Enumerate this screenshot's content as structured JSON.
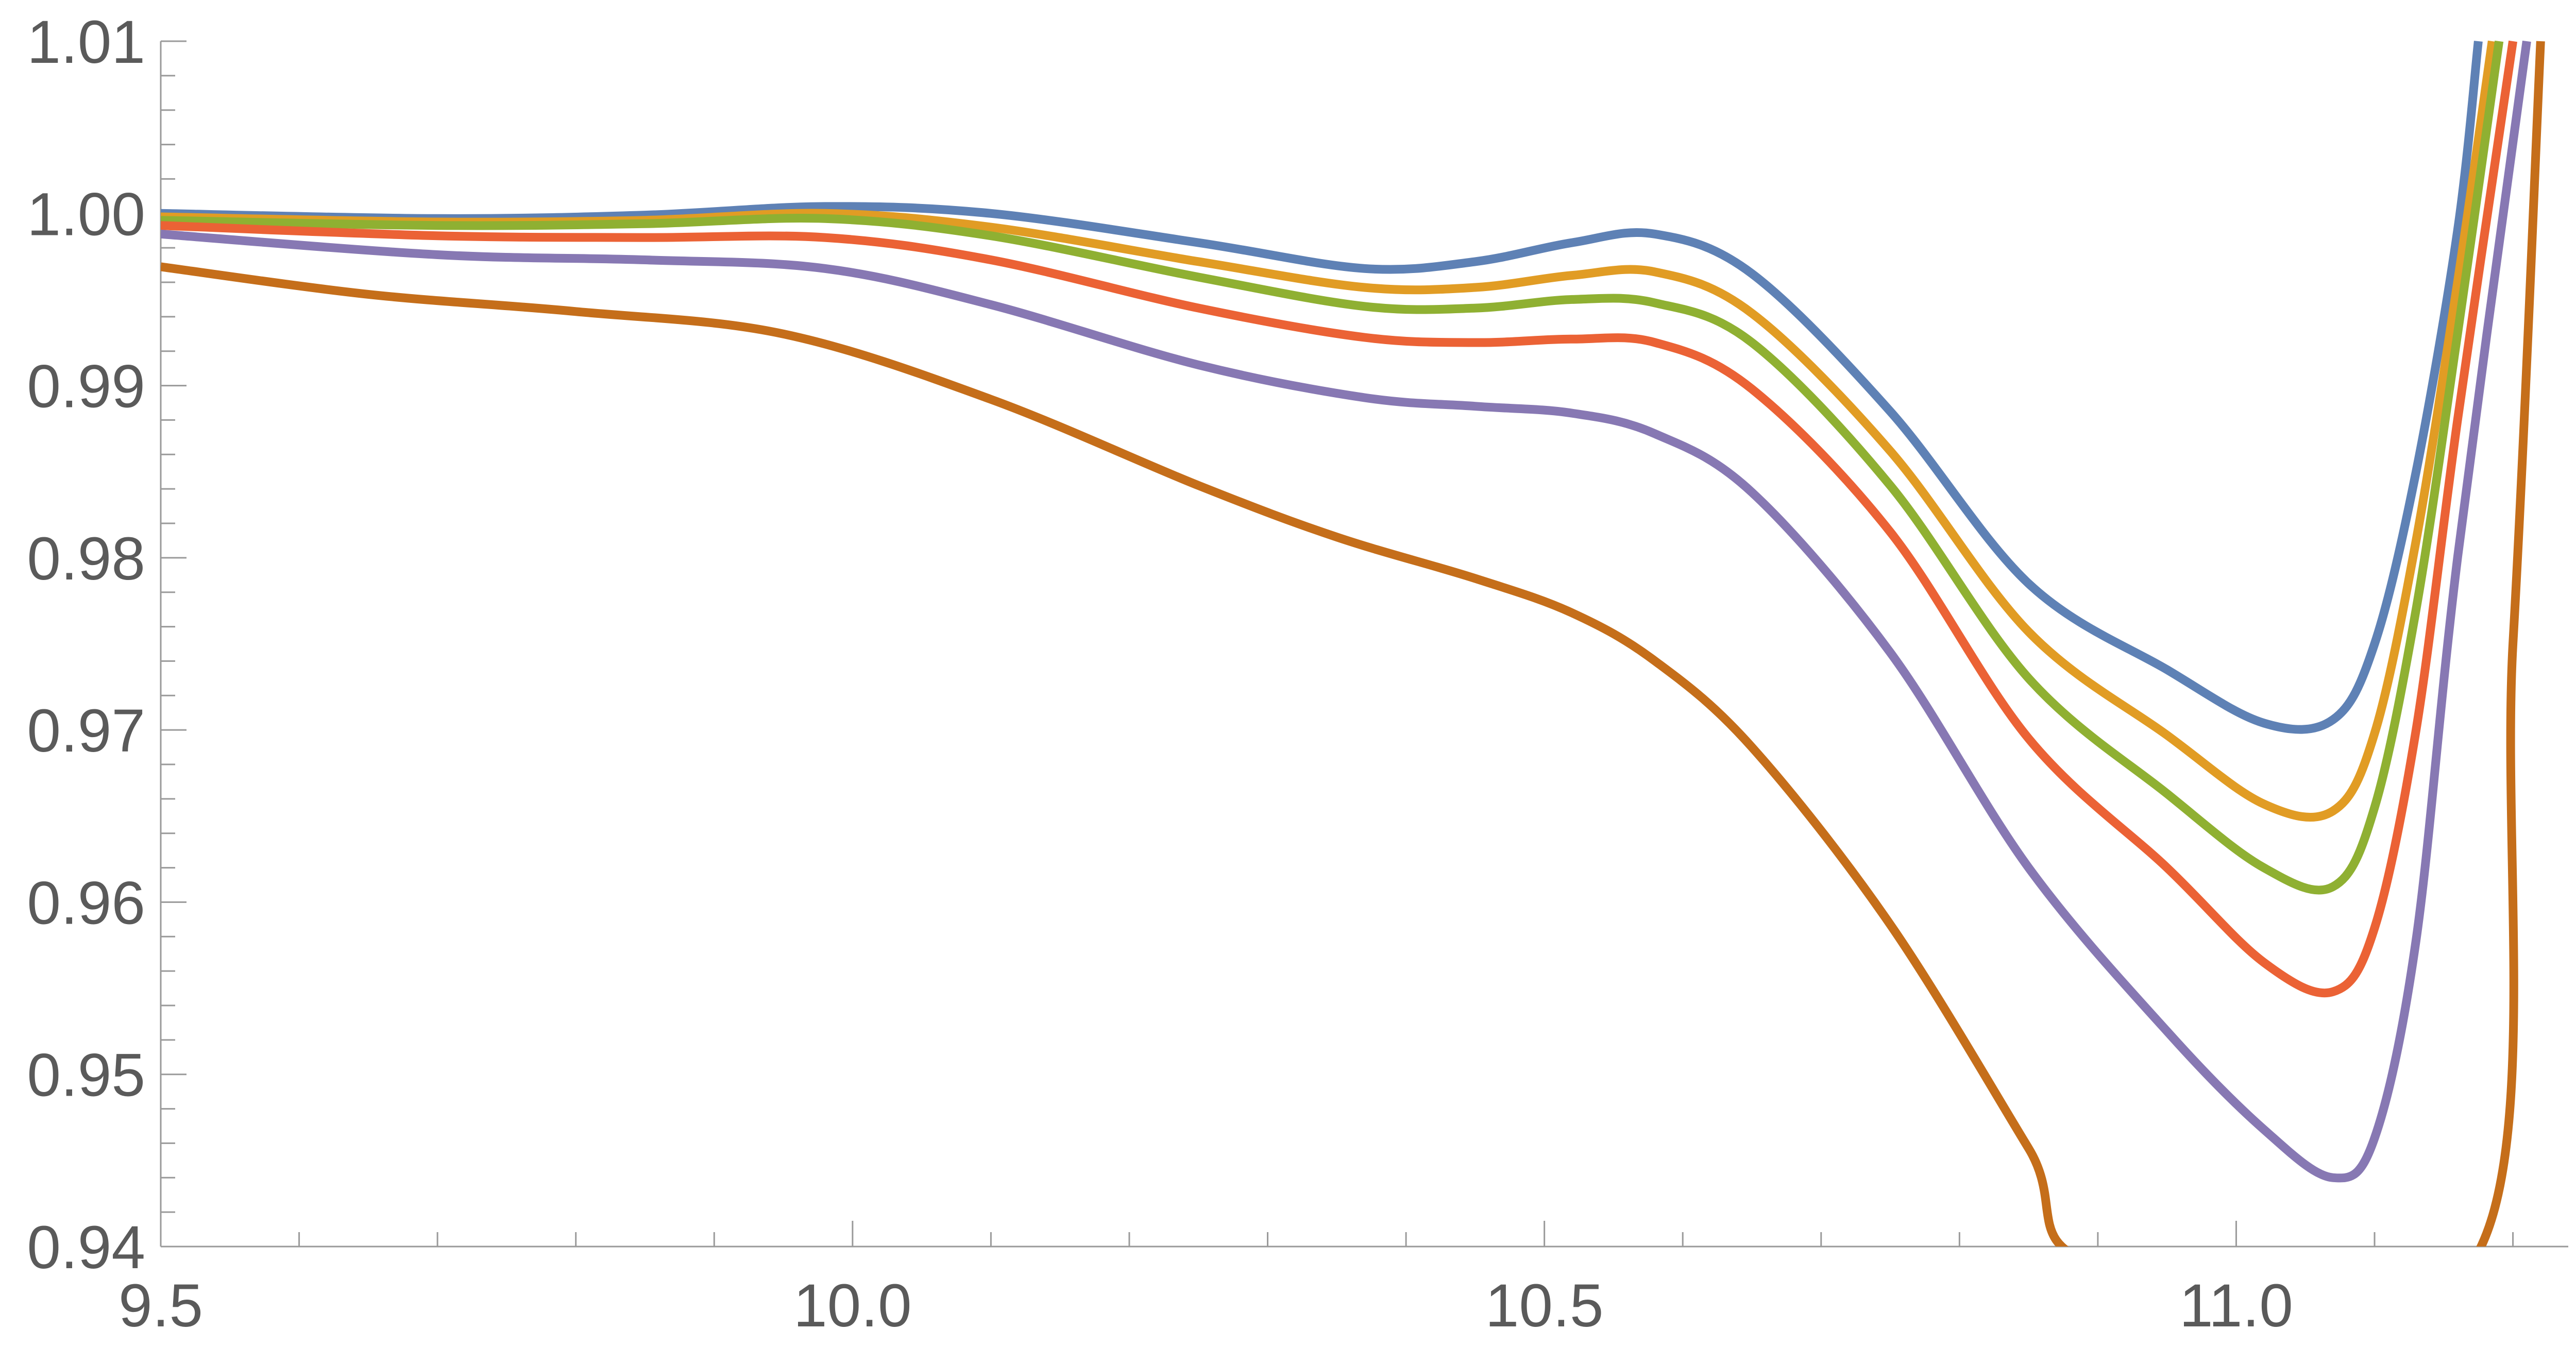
{
  "chart_data": {
    "type": "line",
    "title": "",
    "xlabel": "",
    "ylabel": "",
    "xlim": [
      9.5,
      11.24
    ],
    "ylim": [
      0.94,
      1.01
    ],
    "grid": false,
    "legend": "none",
    "x_ticks": [
      {
        "value": 9.5,
        "label": "9.5"
      },
      {
        "value": 10.0,
        "label": "10.0"
      },
      {
        "value": 10.5,
        "label": "10.5"
      },
      {
        "value": 11.0,
        "label": "11.0"
      }
    ],
    "y_ticks": [
      {
        "value": 0.94,
        "label": "0.94"
      },
      {
        "value": 0.95,
        "label": "0.95"
      },
      {
        "value": 0.96,
        "label": "0.96"
      },
      {
        "value": 0.97,
        "label": "0.97"
      },
      {
        "value": 0.98,
        "label": "0.98"
      },
      {
        "value": 0.99,
        "label": "0.99"
      },
      {
        "value": 1.0,
        "label": "1.00"
      },
      {
        "value": 1.01,
        "label": "1.01"
      }
    ],
    "x_minor_step": 0.1,
    "y_minor_step": 0.002,
    "series": [
      {
        "color": "#5E81B5",
        "points": [
          [
            9.5,
            1.0
          ],
          [
            9.7,
            0.9997
          ],
          [
            9.85,
            0.9999
          ],
          [
            9.98,
            1.0004
          ],
          [
            10.1,
            1.0
          ],
          [
            10.25,
            0.9983
          ],
          [
            10.37,
            0.9968
          ],
          [
            10.45,
            0.9972
          ],
          [
            10.52,
            0.9983
          ],
          [
            10.58,
            0.9988
          ],
          [
            10.65,
            0.9965
          ],
          [
            10.75,
            0.9885
          ],
          [
            10.85,
            0.9785
          ],
          [
            10.95,
            0.9735
          ],
          [
            11.02,
            0.9704
          ],
          [
            11.07,
            0.9706
          ],
          [
            11.1,
            0.975
          ],
          [
            11.13,
            0.985
          ],
          [
            11.16,
            0.999
          ],
          [
            11.175,
            1.01
          ]
        ]
      },
      {
        "color": "#E19C24",
        "points": [
          [
            9.5,
            0.9998
          ],
          [
            9.7,
            0.9995
          ],
          [
            9.85,
            0.9996
          ],
          [
            9.98,
            1.0
          ],
          [
            10.1,
            0.9992
          ],
          [
            10.25,
            0.9972
          ],
          [
            10.37,
            0.9957
          ],
          [
            10.45,
            0.9957
          ],
          [
            10.52,
            0.9964
          ],
          [
            10.58,
            0.9966
          ],
          [
            10.65,
            0.9942
          ],
          [
            10.75,
            0.9862
          ],
          [
            10.85,
            0.9757
          ],
          [
            10.95,
            0.9697
          ],
          [
            11.02,
            0.9657
          ],
          [
            11.07,
            0.9653
          ],
          [
            11.1,
            0.9698
          ],
          [
            11.13,
            0.981
          ],
          [
            11.16,
            0.996
          ],
          [
            11.185,
            1.01
          ]
        ]
      },
      {
        "color": "#8FB032",
        "points": [
          [
            9.5,
            0.9996
          ],
          [
            9.7,
            0.9993
          ],
          [
            9.85,
            0.9994
          ],
          [
            9.98,
            0.9997
          ],
          [
            10.1,
            0.9987
          ],
          [
            10.25,
            0.9963
          ],
          [
            10.37,
            0.9946
          ],
          [
            10.45,
            0.9945
          ],
          [
            10.52,
            0.995
          ],
          [
            10.58,
            0.9948
          ],
          [
            10.65,
            0.9925
          ],
          [
            10.75,
            0.9842
          ],
          [
            10.85,
            0.973
          ],
          [
            10.95,
            0.9663
          ],
          [
            11.02,
            0.962
          ],
          [
            11.07,
            0.9609
          ],
          [
            11.1,
            0.9655
          ],
          [
            11.13,
            0.977
          ],
          [
            11.16,
            0.993
          ],
          [
            11.19,
            1.01
          ]
        ]
      },
      {
        "color": "#EB6235",
        "points": [
          [
            9.5,
            0.9993
          ],
          [
            9.7,
            0.9987
          ],
          [
            9.85,
            0.9986
          ],
          [
            9.98,
            0.9986
          ],
          [
            10.1,
            0.9973
          ],
          [
            10.25,
            0.9945
          ],
          [
            10.37,
            0.9928
          ],
          [
            10.45,
            0.9925
          ],
          [
            10.52,
            0.9927
          ],
          [
            10.58,
            0.9925
          ],
          [
            10.65,
            0.9898
          ],
          [
            10.75,
            0.9815
          ],
          [
            10.85,
            0.9695
          ],
          [
            10.95,
            0.962
          ],
          [
            11.02,
            0.9565
          ],
          [
            11.07,
            0.9548
          ],
          [
            11.1,
            0.9585
          ],
          [
            11.13,
            0.97
          ],
          [
            11.16,
            0.988
          ],
          [
            11.2,
            1.01
          ]
        ]
      },
      {
        "color": "#8778B3",
        "points": [
          [
            9.5,
            0.9988
          ],
          [
            9.7,
            0.9976
          ],
          [
            9.85,
            0.9973
          ],
          [
            9.98,
            0.9968
          ],
          [
            10.1,
            0.9947
          ],
          [
            10.25,
            0.9912
          ],
          [
            10.37,
            0.9893
          ],
          [
            10.45,
            0.9888
          ],
          [
            10.52,
            0.9884
          ],
          [
            10.58,
            0.9872
          ],
          [
            10.65,
            0.9838
          ],
          [
            10.75,
            0.9745
          ],
          [
            10.85,
            0.962
          ],
          [
            10.95,
            0.9525
          ],
          [
            11.02,
            0.9468
          ],
          [
            11.07,
            0.944
          ],
          [
            11.1,
            0.9463
          ],
          [
            11.13,
            0.9578
          ],
          [
            11.16,
            0.98
          ],
          [
            11.21,
            1.01
          ]
        ]
      },
      {
        "color": "#C56E1A",
        "points": [
          [
            9.5,
            0.9969
          ],
          [
            9.65,
            0.9953
          ],
          [
            9.8,
            0.9943
          ],
          [
            9.95,
            0.993
          ],
          [
            10.1,
            0.9892
          ],
          [
            10.25,
            0.9842
          ],
          [
            10.35,
            0.9812
          ],
          [
            10.45,
            0.9788
          ],
          [
            10.52,
            0.9768
          ],
          [
            10.58,
            0.974
          ],
          [
            10.65,
            0.969
          ],
          [
            10.75,
            0.9587
          ],
          [
            10.85,
            0.9457
          ],
          [
            10.9,
            0.939
          ],
          [
            11.17,
            0.939
          ],
          [
            11.2,
            0.975
          ],
          [
            11.22,
            1.01
          ]
        ]
      }
    ]
  }
}
